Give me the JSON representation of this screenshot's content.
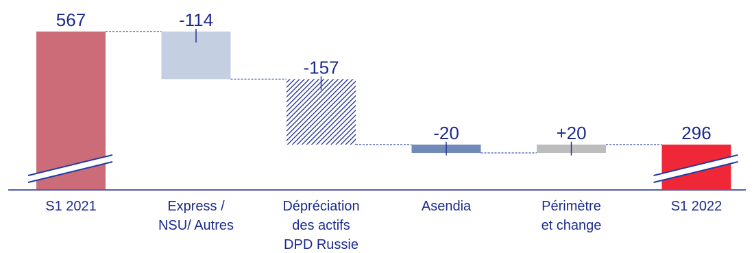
{
  "chart_data": {
    "type": "bar",
    "subtype": "waterfall",
    "title": "",
    "xlabel": "",
    "ylabel": "",
    "categories": [
      [
        "S1 2021"
      ],
      [
        "Express /",
        "NSU/ Autres"
      ],
      [
        "Dépréciation",
        "des actifs",
        "DPD Russie"
      ],
      [
        "Asendia"
      ],
      [
        "Périmètre",
        "et change"
      ],
      [
        "S1 2022"
      ]
    ],
    "values": [
      567,
      -114,
      -157,
      -20,
      20,
      296
    ],
    "value_labels": [
      "567",
      "-114",
      "-157",
      "-20",
      "+20",
      "296"
    ],
    "bar_kinds": [
      "total",
      "delta",
      "delta",
      "delta",
      "delta",
      "total"
    ],
    "axis_break_on_totals": true,
    "grid": false,
    "legend": "none",
    "colors": {
      "total_start": "#cb6c78",
      "express": "#c4cfe1",
      "depreciation_hatch": "#1b2a8e",
      "asendia": "#6f8bb8",
      "perimetre": "#bdbdbd",
      "total_end": "#ef2737",
      "axis": "#1b2a8e",
      "text": "#1b2a8e",
      "connector": "#3b55a5",
      "break_line": "#1f3aa8"
    }
  }
}
